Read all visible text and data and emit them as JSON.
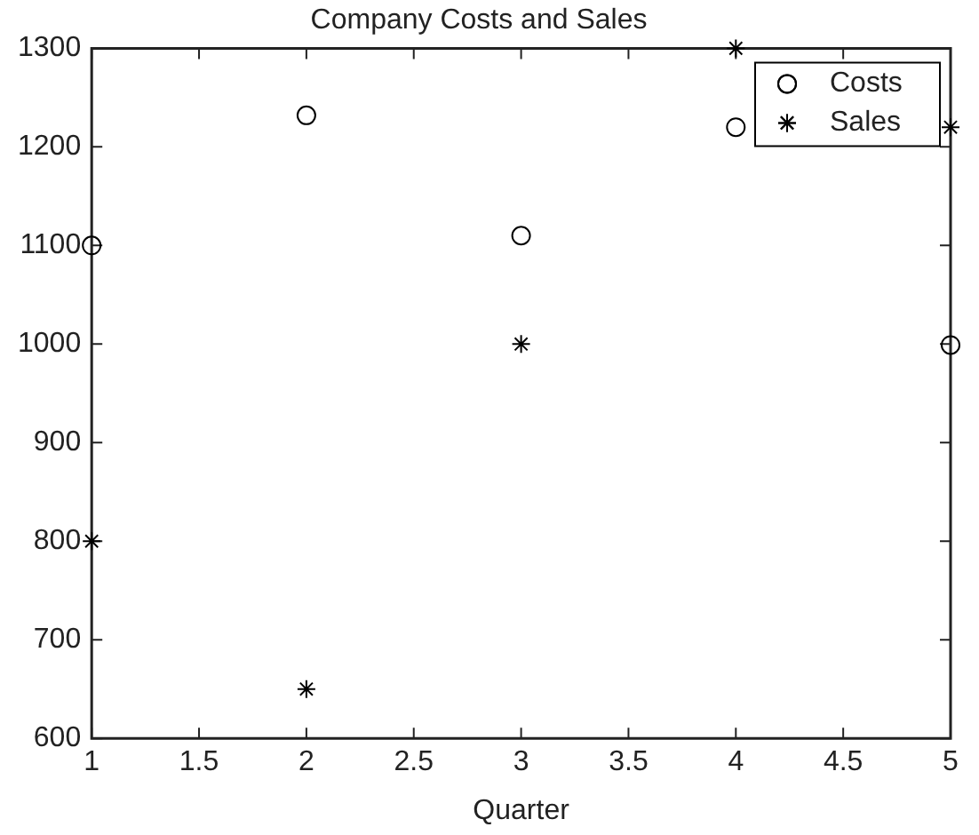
{
  "chart_data": {
    "type": "scatter",
    "title": "Company Costs and Sales",
    "xlabel": "Quarter",
    "x": [
      1,
      2,
      3,
      4,
      5
    ],
    "series": [
      {
        "name": "Costs",
        "color": "#000000",
        "values": [
          1100,
          1232,
          1110,
          1220,
          999
        ],
        "marker": "circle"
      },
      {
        "name": "Sales",
        "color": "#000000",
        "values": [
          800,
          650,
          1000,
          1300,
          1220
        ],
        "marker": "cross"
      }
    ],
    "xlim": [
      1,
      5
    ],
    "xticks": [
      1,
      1.5,
      2,
      2.5,
      3,
      3.5,
      4,
      4.5,
      5
    ],
    "ylim": [
      600,
      1300
    ],
    "yticks": [
      600,
      700,
      800,
      900,
      1000,
      1100,
      1200,
      1300
    ],
    "grid": false,
    "legend": "top right"
  }
}
